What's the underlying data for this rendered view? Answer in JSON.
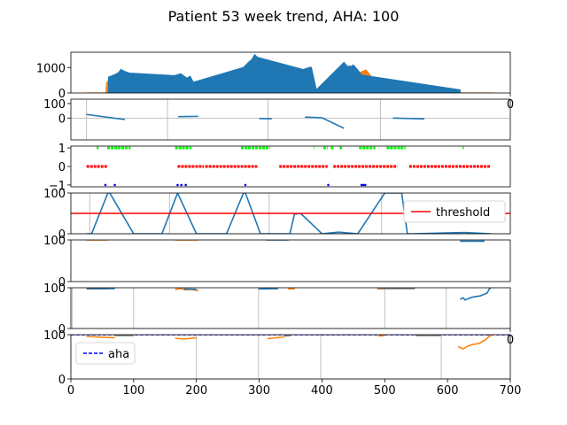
{
  "title": "Patient 53 week trend, AHA: 100",
  "colors": {
    "blue": "#1f77b4",
    "orange": "#ff7f0e",
    "gray": "#7f7f7f",
    "green": "#00ff00",
    "red": "#ff0000",
    "navy": "#0000ff"
  },
  "chart_data": [
    {
      "type": "bar",
      "xlim": [
        0,
        700
      ],
      "ylim": [
        0,
        1600
      ],
      "yticks": [
        0,
        1000
      ],
      "xticks": [
        700
      ],
      "xtick_labels": [
        "0"
      ],
      "grid": false,
      "series": [
        {
          "color": "orange",
          "x": [
            25,
            56,
            57,
            60,
            65,
            70,
            75,
            80,
            85,
            90,
            95,
            100,
            160,
            163,
            170,
            180,
            190,
            195,
            230,
            270,
            275,
            280,
            285,
            290,
            295,
            300,
            310,
            320,
            370,
            375,
            380,
            382,
            385,
            390,
            420,
            435,
            440,
            450,
            460,
            470,
            480,
            500,
            520,
            540,
            560,
            620,
            669
          ],
          "y": [
            0,
            0,
            400,
            500,
            550,
            650,
            600,
            700,
            650,
            500,
            600,
            0,
            0,
            400,
            550,
            600,
            500,
            400,
            0,
            0,
            700,
            900,
            1100,
            1000,
            1300,
            1200,
            1000,
            0,
            0,
            800,
            900,
            1000,
            700,
            0,
            0,
            700,
            900,
            1000,
            800,
            900,
            600,
            0,
            0,
            0,
            0,
            0,
            0
          ]
        },
        {
          "color": "blue",
          "x": [
            60,
            70,
            75,
            80,
            85,
            93,
            165,
            175,
            185,
            190,
            195,
            275,
            283,
            288,
            293,
            297,
            370,
            380,
            383,
            391,
            435,
            440,
            447,
            450,
            457,
            463,
            620
          ],
          "y": [
            620,
            720,
            780,
            920,
            850,
            780,
            680,
            750,
            580,
            650,
            420,
            1000,
            1200,
            1300,
            1500,
            1400,
            920,
            1000,
            1000,
            120,
            1200,
            1050,
            1050,
            1100,
            900,
            700,
            120
          ]
        }
      ]
    },
    {
      "type": "line",
      "xlim": [
        0,
        700
      ],
      "ylim": [
        -150,
        130
      ],
      "yticks": [
        0,
        100
      ],
      "xticks": [],
      "xtick_labels": [],
      "grid": true,
      "gridx": [
        25,
        154,
        314,
        493
      ],
      "gridy": [
        0
      ],
      "series": [
        {
          "color": "blue",
          "segments": [
            [
              [
                25,
                25
              ],
              [
                86,
                -10
              ]
            ],
            [
              [
                171,
                10
              ],
              [
                203,
                12
              ]
            ],
            [
              [
                300,
                -3
              ],
              [
                320,
                -5
              ]
            ],
            [
              [
                373,
                7
              ],
              [
                400,
                2
              ],
              [
                435,
                -70
              ]
            ],
            [
              [
                513,
                0
              ],
              [
                563,
                -6
              ]
            ]
          ]
        }
      ]
    },
    {
      "type": "scatter",
      "xlim": [
        0,
        700
      ],
      "ylim": [
        -1.1,
        1.1
      ],
      "yticks": [
        -1,
        0,
        1
      ],
      "xticks": [],
      "xtick_labels": [],
      "grid": false,
      "series": [
        {
          "color": "green",
          "y_value": 1,
          "segments": [
            [
              41,
              44
            ],
            [
              58,
              95
            ],
            [
              166,
              192
            ],
            [
              271,
              317
            ],
            [
              387,
              388
            ],
            [
              402,
              409
            ],
            [
              414,
              418
            ],
            [
              428,
              432
            ],
            [
              459,
              485
            ],
            [
              503,
              533
            ],
            [
              624,
              626
            ]
          ]
        },
        {
          "color": "red",
          "y_value": 0,
          "segments": [
            [
              25,
              58
            ],
            [
              170,
              212
            ],
            [
              214,
              297
            ],
            [
              332,
              409
            ],
            [
              418,
              520
            ],
            [
              539,
              669
            ]
          ]
        },
        {
          "color": "navy",
          "y_value": -1,
          "points": [
            55,
            70,
            170,
            176,
            183,
            278,
            410,
            463,
            466,
            469
          ]
        }
      ]
    },
    {
      "type": "line",
      "xlim": [
        0,
        700
      ],
      "ylim": [
        0,
        100
      ],
      "yticks": [
        0,
        100
      ],
      "xticks": [],
      "xtick_labels": [],
      "grid": true,
      "gridx": [
        30,
        157,
        316,
        495
      ],
      "gridy": [
        0
      ],
      "legend": {
        "labels": [
          "threshold"
        ],
        "loc": "upper-right"
      },
      "series": [
        {
          "color": "blue",
          "points": [
            [
              25,
              0
            ],
            [
              33,
              0
            ],
            [
              59,
              100
            ],
            [
              62,
              100
            ],
            [
              100,
              0
            ],
            [
              145,
              0
            ],
            [
              165,
              80
            ],
            [
              170,
              100
            ],
            [
              200,
              0
            ],
            [
              248,
              0
            ],
            [
              275,
              100
            ],
            [
              278,
              100
            ],
            [
              302,
              0
            ],
            [
              349,
              0
            ],
            [
              356,
              48
            ],
            [
              366,
              50
            ],
            [
              400,
              0
            ],
            [
              427,
              4
            ],
            [
              457,
              0
            ],
            [
              500,
              100
            ],
            [
              527,
              100
            ],
            [
              536,
              0
            ],
            [
              545,
              0
            ],
            [
              623,
              3
            ],
            [
              630,
              3
            ],
            [
              669,
              0
            ]
          ]
        },
        {
          "color": "red",
          "name": "threshold",
          "points": [
            [
              0,
              50
            ],
            [
              700,
              50
            ]
          ]
        }
      ]
    },
    {
      "type": "line",
      "xlim": [
        0,
        700
      ],
      "ylim": [
        0,
        100
      ],
      "yticks": [
        0,
        100
      ],
      "xticks": [],
      "xtick_labels": [],
      "grid": false,
      "series": [
        {
          "color": "orange",
          "segments": [
            [
              [
                25,
                100
              ],
              [
                59,
                100
              ]
            ],
            [
              [
                166,
                100
              ],
              [
                203,
                100
              ]
            ]
          ]
        },
        {
          "color": "blue",
          "segments": [
            [
              [
                311,
                100
              ],
              [
                347,
                100
              ]
            ],
            [
              [
                620,
                97
              ],
              [
                659,
                97
              ]
            ]
          ]
        }
      ]
    },
    {
      "type": "line",
      "xlim": [
        0,
        700
      ],
      "ylim": [
        0,
        100
      ],
      "yticks": [
        0,
        100
      ],
      "xticks": [
        700
      ],
      "xtick_labels": [
        "0"
      ],
      "grid": true,
      "gridx": [
        2,
        100,
        299,
        500,
        598
      ],
      "gridy": [
        0
      ],
      "series": [
        {
          "color": "orange",
          "segments": [
            [
              [
                25,
                97
              ],
              [
                59,
                98
              ]
            ],
            [
              [
                166,
                96
              ],
              [
                175,
                98
              ],
              [
                182,
                95
              ],
              [
                192,
                96
              ],
              [
                203,
                93
              ]
            ],
            [
              [
                346,
                97
              ],
              [
                357,
                98
              ]
            ],
            [
              [
                488,
                97
              ],
              [
                493,
                98
              ]
            ]
          ]
        },
        {
          "color": "blue",
          "segments": [
            [
              [
                25,
                98
              ],
              [
                70,
                98
              ]
            ],
            [
              [
                180,
                97
              ],
              [
                200,
                96
              ]
            ],
            [
              [
                299,
                97
              ],
              [
                330,
                98
              ]
            ],
            [
              [
                620,
                72
              ],
              [
                625,
                75
              ],
              [
                628,
                70
              ],
              [
                634,
                74
              ],
              [
                640,
                77
              ],
              [
                652,
                80
              ],
              [
                663,
                87
              ],
              [
                667,
                98
              ],
              [
                669,
                100
              ]
            ]
          ]
        },
        {
          "color": "gray",
          "segments": [
            [
              [
                492,
                98
              ],
              [
                548,
                98
              ]
            ]
          ]
        }
      ]
    },
    {
      "type": "line",
      "xlim": [
        0,
        700
      ],
      "ylim": [
        0,
        100
      ],
      "yticks": [
        0,
        100
      ],
      "xticks": [
        0,
        100,
        200,
        300,
        400,
        500,
        600,
        700
      ],
      "xtick_labels": [
        "0",
        "100",
        "200",
        "300",
        "400",
        "500",
        "600",
        "700"
      ],
      "grid": true,
      "gridx": [
        0,
        200,
        299,
        398,
        590
      ],
      "gridy": [
        0
      ],
      "legend": {
        "labels": [
          "aha"
        ],
        "loc": "upper-left"
      },
      "series": [
        {
          "color": "navy",
          "name": "aha",
          "dashed": true,
          "points": [
            [
              0,
              100
            ],
            [
              700,
              100
            ]
          ]
        },
        {
          "color": "orange",
          "segments": [
            [
              [
                25,
                96
              ],
              [
                70,
                93
              ]
            ],
            [
              [
                166,
                92
              ],
              [
                180,
                90
              ],
              [
                200,
                93
              ]
            ],
            [
              [
                313,
                91
              ],
              [
                340,
                95
              ]
            ],
            [
              [
                490,
                97
              ],
              [
                500,
                98
              ]
            ],
            [
              [
                617,
                73
              ],
              [
                625,
                68
              ],
              [
                632,
                74
              ],
              [
                640,
                78
              ],
              [
                650,
                80
              ],
              [
                660,
                88
              ],
              [
                668,
                98
              ],
              [
                672,
                100
              ]
            ]
          ]
        },
        {
          "color": "gray",
          "segments": [
            [
              [
                70,
                98
              ],
              [
                100,
                98
              ]
            ],
            [
              [
                340,
                97
              ],
              [
                350,
                98
              ]
            ],
            [
              [
                549,
                98
              ],
              [
                590,
                98
              ]
            ]
          ]
        }
      ]
    }
  ]
}
